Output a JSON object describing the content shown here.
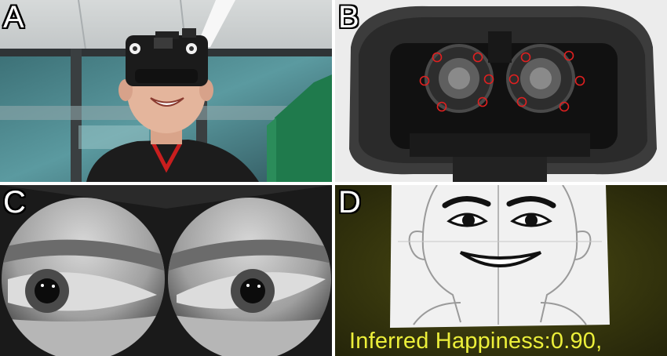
{
  "panels": {
    "a": {
      "label": "A"
    },
    "b": {
      "label": "B"
    },
    "c": {
      "label": "C"
    },
    "d": {
      "label": "D",
      "caption": "Inferred Happiness:0.90,"
    }
  },
  "colors": {
    "marker_ring": "#e02020",
    "caption_text": "#ecef3a",
    "overlay_background": "#3a3a0a"
  }
}
